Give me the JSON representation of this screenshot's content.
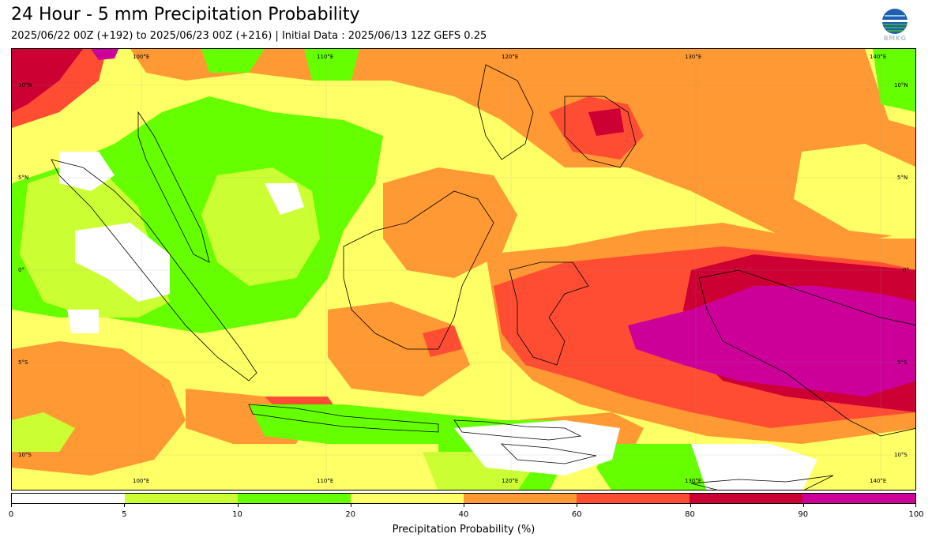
{
  "title": "24 Hour - 5 mm Precipitation Probability",
  "subtitle": "2025/06/22 00Z (+192) to 2025/06/23 00Z (+216) | Initial Data : 2025/06/13 12Z GEFS 0.25",
  "logo": {
    "icon": "bmkg-globe-logo",
    "text": "BMKG"
  },
  "map": {
    "lon_labels": [
      "100°E",
      "110°E",
      "120°E",
      "130°E",
      "140°E"
    ],
    "lat_labels_left": [
      "10°N",
      "5°N",
      "0°",
      "5°S",
      "10°S"
    ],
    "lat_labels_right": [
      "10°N",
      "5°N",
      "0°",
      "5°S",
      "10°S"
    ]
  },
  "colorbar": {
    "title": "Precipitation Probability (%)",
    "ticks": [
      "0",
      "5",
      "10",
      "20",
      "40",
      "60",
      "80",
      "90",
      "100"
    ],
    "colors": [
      "#ffffff",
      "#ccff33",
      "#66ff00",
      "#ffff66",
      "#ff9933",
      "#ff4d33",
      "#cc0033",
      "#cc0099"
    ]
  }
}
